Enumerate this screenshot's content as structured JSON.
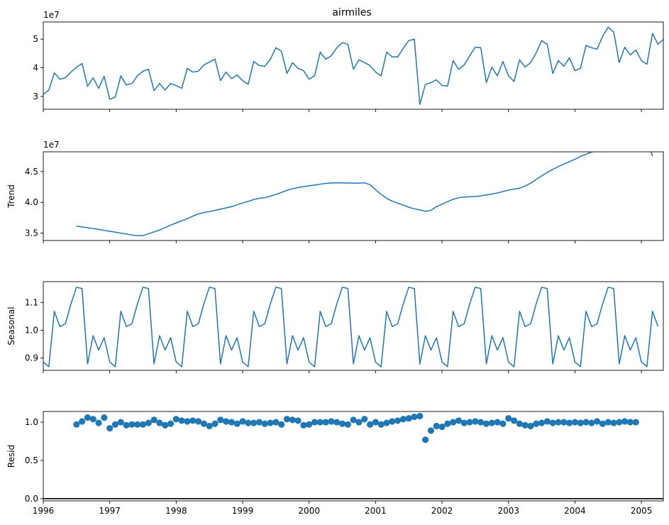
{
  "chart_data": {
    "type": "line",
    "title": "airmiles",
    "xlabel": "",
    "x_ticks": [
      "1996",
      "1997",
      "1998",
      "1999",
      "2000",
      "2001",
      "2002",
      "2003",
      "2004",
      "2005"
    ],
    "xlim": [
      1996.0,
      2005.33
    ],
    "subplots": [
      {
        "name": "observed",
        "type": "line",
        "ylabel": "",
        "offset_label": "1e7",
        "ylim": [
          2.55,
          5.6
        ],
        "y_ticks": [
          "3",
          "4",
          "5"
        ],
        "y_tick_values": [
          3,
          4,
          5
        ],
        "start": 1996.0,
        "step": 0.0833333,
        "values": [
          3.07,
          3.22,
          3.82,
          3.6,
          3.65,
          3.85,
          4.02,
          4.15,
          3.35,
          3.65,
          3.28,
          3.7,
          2.9,
          2.98,
          3.72,
          3.4,
          3.45,
          3.72,
          3.88,
          3.95,
          3.2,
          3.45,
          3.22,
          3.45,
          3.38,
          3.28,
          3.98,
          3.85,
          3.88,
          4.1,
          4.2,
          4.3,
          3.55,
          3.85,
          3.62,
          3.75,
          3.55,
          3.42,
          4.22,
          4.08,
          4.05,
          4.3,
          4.7,
          4.58,
          3.8,
          4.18,
          3.98,
          3.9,
          3.6,
          3.72,
          4.55,
          4.3,
          4.42,
          4.7,
          4.88,
          4.82,
          3.95,
          4.28,
          4.18,
          4.08,
          3.85,
          3.72,
          4.55,
          4.38,
          4.38,
          4.68,
          4.95,
          5.0,
          2.72,
          3.42,
          3.48,
          3.58,
          3.38,
          3.36,
          4.25,
          3.95,
          4.1,
          4.42,
          4.72,
          4.7,
          3.48,
          4.02,
          3.72,
          4.22,
          3.72,
          3.52,
          4.28,
          4.02,
          4.18,
          4.52,
          4.95,
          4.82,
          3.8,
          4.25,
          4.05,
          4.35,
          3.9,
          3.98,
          4.78,
          4.7,
          4.65,
          5.1,
          5.42,
          5.25,
          4.18,
          4.72,
          4.45,
          4.62,
          4.25,
          4.12,
          5.2,
          4.82,
          5.0
        ]
      },
      {
        "name": "trend",
        "type": "line",
        "ylabel": "Trend",
        "offset_label": "1e7",
        "ylim": [
          3.38,
          4.82
        ],
        "y_ticks": [
          "3.5",
          "4.0",
          "4.5"
        ],
        "y_tick_values": [
          3.5,
          4.0,
          4.5
        ],
        "start": 1996.5,
        "step": 0.0833333,
        "values": [
          3.615,
          3.6,
          3.588,
          3.575,
          3.56,
          3.545,
          3.53,
          3.515,
          3.5,
          3.486,
          3.47,
          3.458,
          3.46,
          3.49,
          3.52,
          3.55,
          3.59,
          3.63,
          3.665,
          3.7,
          3.735,
          3.775,
          3.81,
          3.835,
          3.85,
          3.87,
          3.89,
          3.91,
          3.93,
          3.96,
          3.99,
          4.015,
          4.045,
          4.065,
          4.075,
          4.1,
          4.13,
          4.16,
          4.195,
          4.22,
          4.24,
          4.255,
          4.268,
          4.28,
          4.295,
          4.308,
          4.315,
          4.318,
          4.315,
          4.315,
          4.312,
          4.312,
          4.318,
          4.285,
          4.205,
          4.13,
          4.065,
          4.02,
          3.985,
          3.955,
          3.92,
          3.895,
          3.875,
          3.855,
          3.87,
          3.93,
          3.97,
          4.01,
          4.05,
          4.075,
          4.085,
          4.09,
          4.095,
          4.105,
          4.12,
          4.135,
          4.152,
          4.175,
          4.198,
          4.215,
          4.23,
          4.265,
          4.31,
          4.37,
          4.43,
          4.485,
          4.535,
          4.58,
          4.62,
          4.66,
          4.7,
          4.745,
          4.78,
          4.815,
          4.84,
          4.86,
          4.88,
          4.9,
          4.92,
          4.94,
          4.96,
          4.98,
          5.0,
          5.02,
          4.752
        ]
      },
      {
        "name": "seasonal",
        "type": "line",
        "ylabel": "Seasonal",
        "offset_label": "",
        "ylim": [
          0.855,
          1.175
        ],
        "y_ticks": [
          "0.9",
          "1.0",
          "1.1"
        ],
        "y_tick_values": [
          0.9,
          1.0,
          1.1
        ],
        "start": 1996.0,
        "step": 0.0833333,
        "pattern": [
          0.885,
          0.868,
          1.068,
          1.013,
          1.023,
          1.095,
          1.155,
          1.15,
          0.878,
          0.98,
          0.928,
          0.973
        ],
        "periods": 112
      },
      {
        "name": "resid",
        "type": "scatter",
        "ylabel": "Resid",
        "offset_label": "",
        "ylim": [
          -0.03,
          1.14
        ],
        "y_ticks": [
          "0.0",
          "0.5",
          "1.0"
        ],
        "y_tick_values": [
          0.0,
          0.5,
          1.0
        ],
        "hline": 0.0,
        "start": 1996.5,
        "step": 0.0833333,
        "values": [
          0.97,
          1.01,
          1.06,
          1.04,
          0.99,
          1.06,
          0.92,
          0.97,
          1.0,
          0.96,
          0.97,
          0.97,
          0.97,
          0.99,
          1.03,
          0.99,
          0.96,
          0.98,
          1.04,
          1.02,
          1.01,
          1.02,
          1.01,
          0.98,
          0.95,
          0.98,
          1.03,
          1.01,
          1.0,
          0.98,
          1.01,
          0.99,
          0.99,
          1.0,
          0.98,
          0.99,
          1.0,
          0.97,
          1.04,
          1.03,
          1.02,
          0.96,
          0.97,
          1.0,
          1.0,
          1.0,
          1.01,
          1.0,
          0.98,
          0.97,
          1.03,
          1.0,
          1.04,
          0.97,
          1.0,
          0.97,
          0.99,
          1.01,
          1.02,
          1.04,
          1.05,
          1.07,
          1.08,
          0.77,
          0.89,
          0.95,
          0.94,
          0.98,
          1.0,
          1.02,
          0.99,
          1.0,
          1.01,
          1.0,
          0.98,
          0.99,
          1.0,
          0.98,
          1.05,
          1.02,
          0.98,
          0.96,
          0.95,
          0.98,
          0.99,
          1.01,
          0.99,
          1.0,
          1.0,
          0.99,
          1.0,
          0.99,
          1.0,
          0.99,
          1.01,
          0.98,
          1.0,
          0.99,
          1.0,
          1.01,
          1.0,
          1.0
        ]
      }
    ]
  }
}
